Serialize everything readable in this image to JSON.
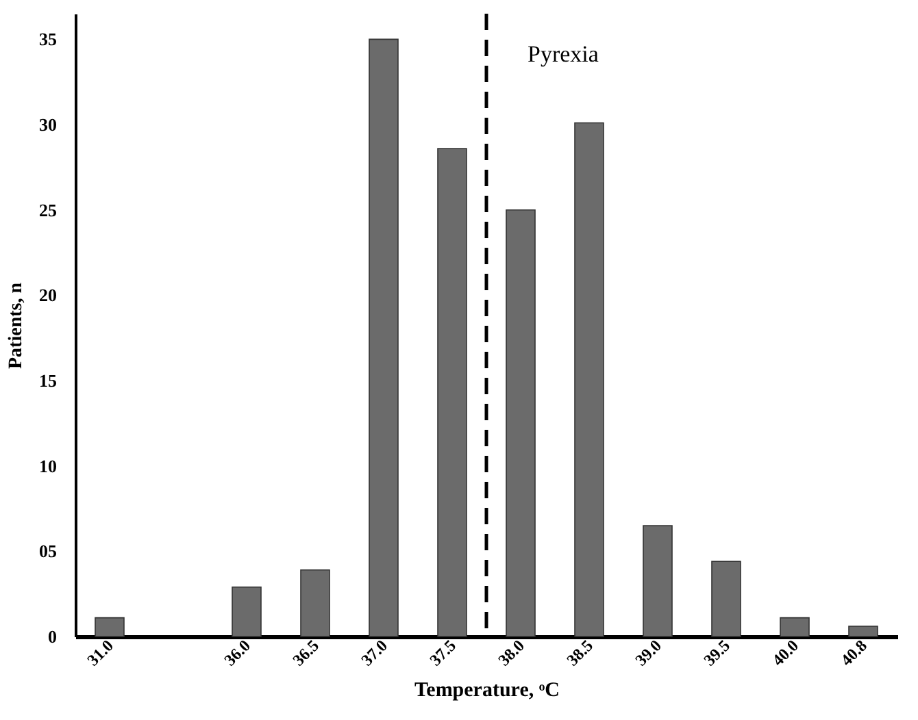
{
  "chart_data": {
    "type": "bar",
    "xlabel": "Temperature, ᵒC",
    "ylabel": "Patients, n",
    "categories": [
      "31.0",
      null,
      "36.0",
      "36.5",
      "37.0",
      "37.5",
      "38.0",
      "38.5",
      "39.0",
      "39.5",
      "40.0",
      "40.8"
    ],
    "values": [
      1.1,
      null,
      2.9,
      3.9,
      35,
      28.6,
      25,
      30.1,
      6.5,
      4.4,
      1.1,
      0.6
    ],
    "color": "#6b6b6b",
    "ylim": [
      0,
      36.5
    ],
    "yticks": [
      0,
      {
        "value": 5,
        "label": "05"
      },
      10,
      15,
      20,
      25,
      30,
      35
    ],
    "annotations": [
      "Pyrexia"
    ],
    "grid": false
  }
}
